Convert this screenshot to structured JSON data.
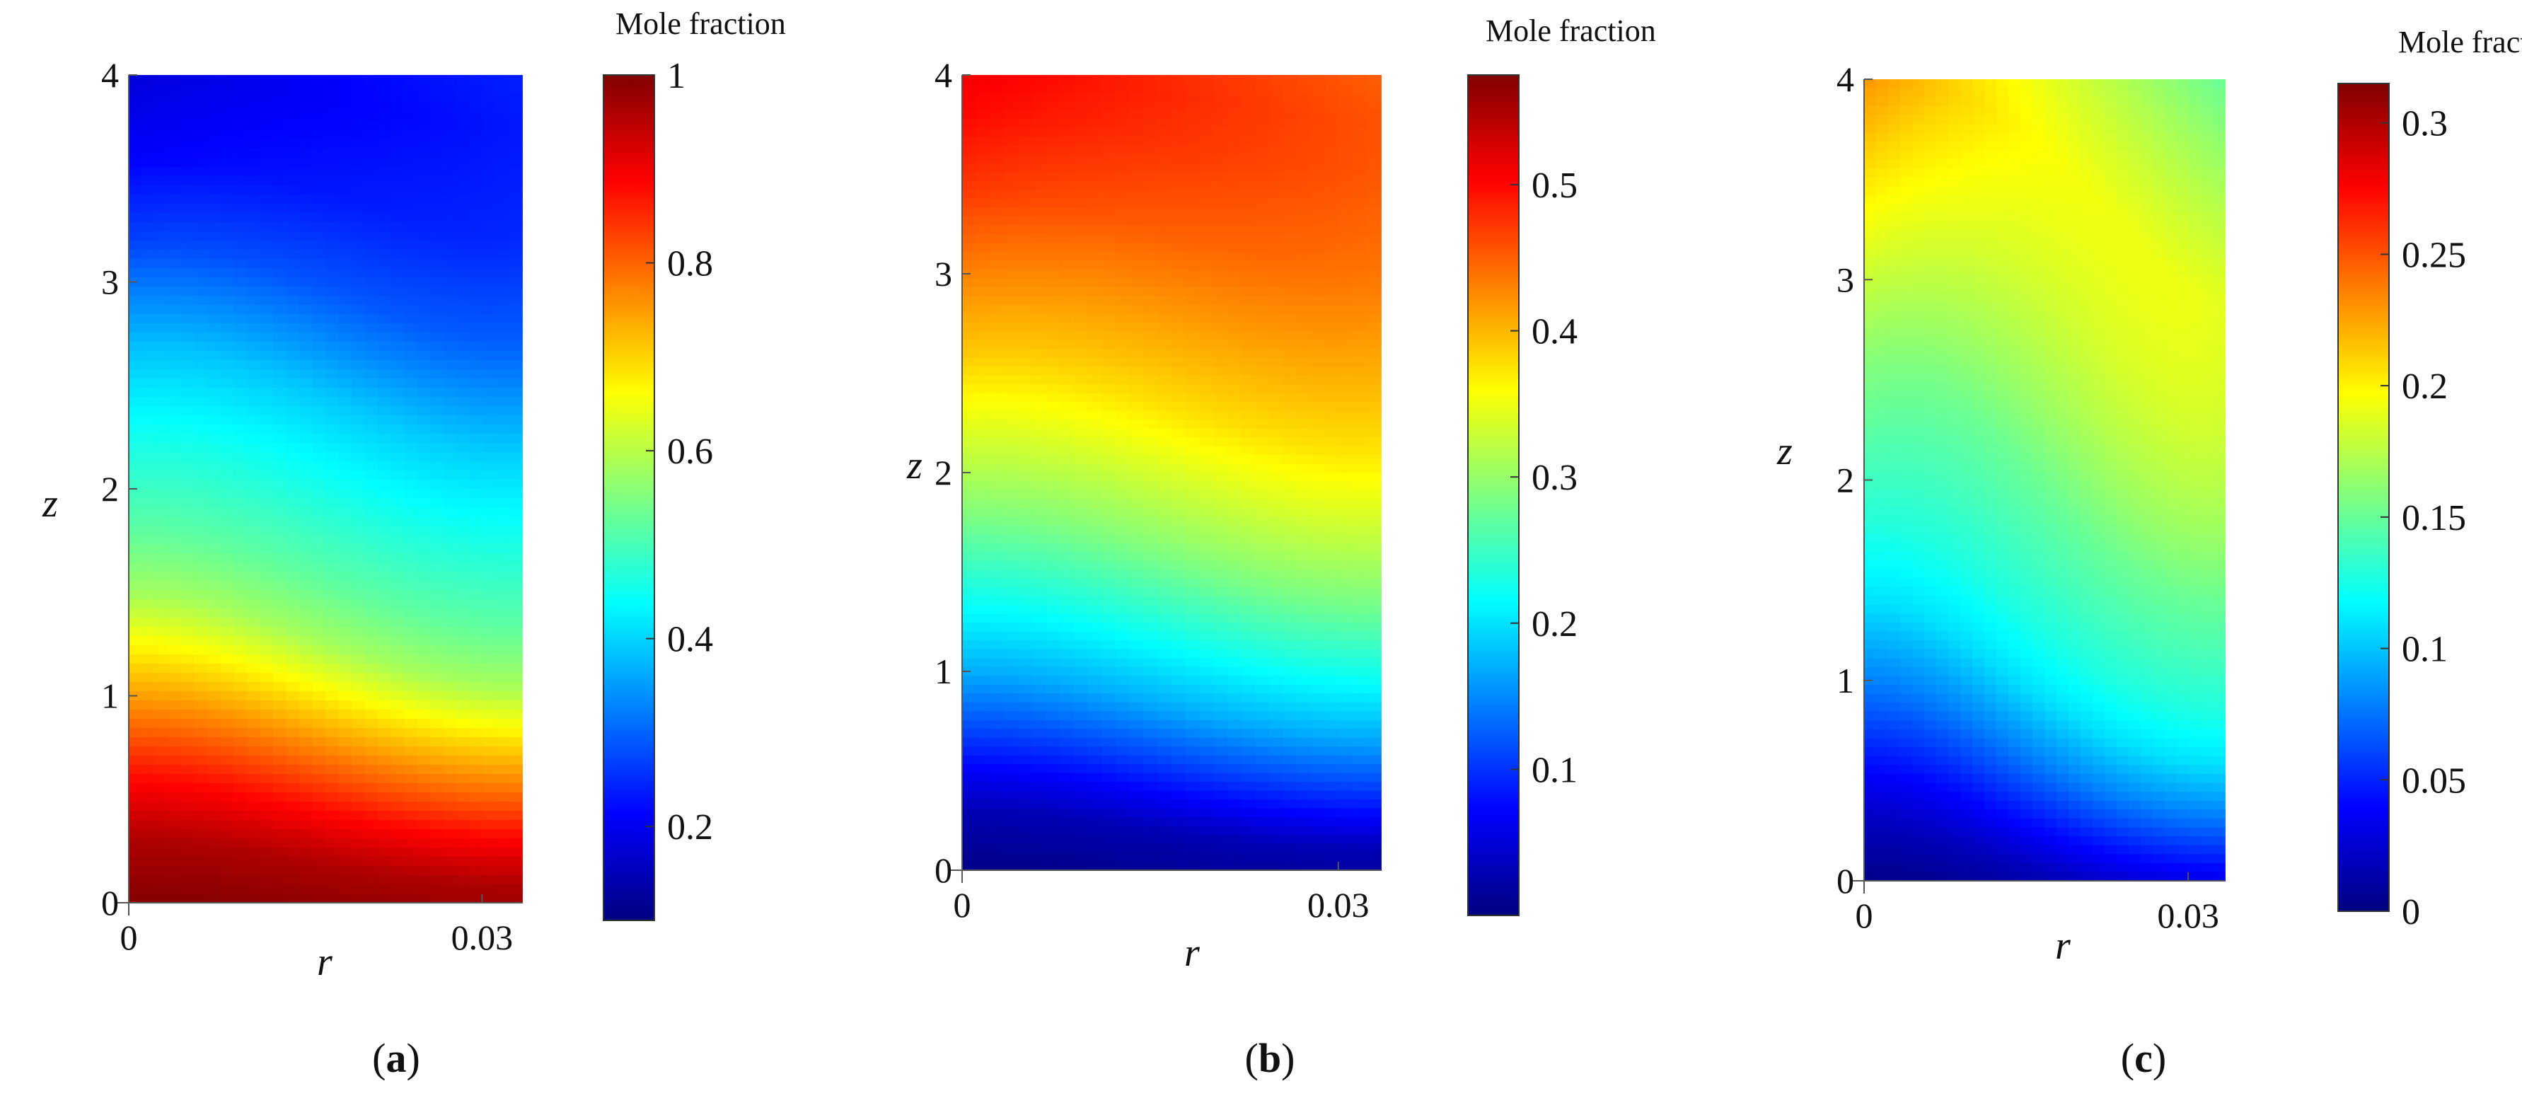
{
  "chart_data": [
    {
      "type": "heatmap",
      "panel_label": "a",
      "xlabel": "r",
      "ylabel": "z",
      "xlim": [
        0,
        0.0334
      ],
      "ylim": [
        0,
        4
      ],
      "x_ticks": [
        0,
        0.03
      ],
      "y_ticks": [
        0,
        1,
        2,
        3,
        4
      ],
      "colorbar": {
        "title": "Mole fraction",
        "range": [
          0.1,
          1.0
        ],
        "ticks": [
          0.2,
          0.4,
          0.6,
          0.8,
          1
        ]
      },
      "field": {
        "profile_z": [
          0,
          0.3,
          0.6,
          0.9,
          1.2,
          1.5,
          1.8,
          2.2,
          2.7,
          3.2,
          3.6,
          4.0
        ],
        "profile_values": [
          0.995,
          0.96,
          0.88,
          0.78,
          0.68,
          0.58,
          0.52,
          0.46,
          0.38,
          0.27,
          0.21,
          0.18
        ],
        "axial_shift_at_wall": 0.55,
        "radial_drop_at_top": 0.06
      }
    },
    {
      "type": "heatmap",
      "panel_label": "b",
      "xlabel": "r",
      "ylabel": "z",
      "xlim": [
        0,
        0.0334
      ],
      "ylim": [
        0,
        4
      ],
      "x_ticks": [
        0,
        0.03
      ],
      "y_ticks": [
        0,
        1,
        2,
        3,
        4
      ],
      "colorbar": {
        "title": "Mole fraction",
        "range": [
          0.0,
          0.575
        ],
        "ticks": [
          0.1,
          0.2,
          0.3,
          0.4,
          0.5
        ]
      },
      "field": {
        "profile_z": [
          0,
          0.3,
          0.6,
          1.0,
          1.4,
          1.8,
          2.2,
          2.6,
          3.0,
          3.4,
          3.8,
          4.0
        ],
        "profile_values": [
          0.005,
          0.03,
          0.09,
          0.17,
          0.23,
          0.29,
          0.34,
          0.39,
          0.43,
          0.47,
          0.5,
          0.51
        ],
        "axial_shift_at_wall": 0.5,
        "radial_drop_at_top": -0.06
      }
    },
    {
      "type": "heatmap",
      "panel_label": "c",
      "xlabel": "r",
      "ylabel": "z",
      "xlim": [
        0,
        0.0334
      ],
      "ylim": [
        0,
        4
      ],
      "x_ticks": [
        0,
        0.03
      ],
      "y_ticks": [
        0,
        1,
        2,
        3,
        4
      ],
      "colorbar": {
        "title": "Mole fraction",
        "range": [
          0.0,
          0.315
        ],
        "ticks": [
          0,
          0.05,
          0.1,
          0.15,
          0.2,
          0.25,
          0.3
        ]
      },
      "field": {
        "profile_z": [
          0,
          0.3,
          0.6,
          1.0,
          1.4,
          1.8,
          2.2,
          2.6,
          3.0,
          3.4,
          3.8,
          4.0
        ],
        "profile_values": [
          0.003,
          0.02,
          0.045,
          0.08,
          0.11,
          0.13,
          0.145,
          0.16,
          0.18,
          0.2,
          0.22,
          0.23
        ],
        "axial_shift_at_wall": 1.3,
        "radial_drop_at_top": -0.08
      }
    }
  ]
}
